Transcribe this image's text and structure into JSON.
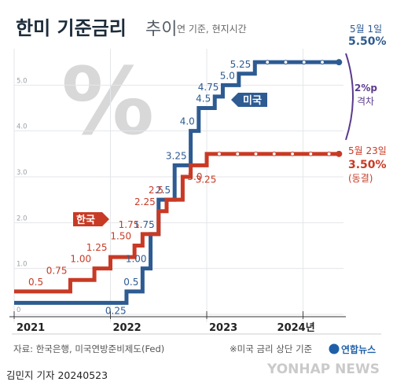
{
  "header": {
    "title": "한미 기준금리",
    "title_suffix": "추이",
    "subtitle": "연 기준, 현지시간"
  },
  "watermark_symbol": "%",
  "chart_data": {
    "type": "line",
    "step": true,
    "ylim": [
      0,
      6
    ],
    "y_ticks": [
      "0",
      "1.0",
      "2.0",
      "3.0",
      "4.0",
      "5.0"
    ],
    "x_ticks": [
      "2021",
      "2022",
      "2023",
      "2024년"
    ],
    "grid": true,
    "series": [
      {
        "name": "미국",
        "color": "#2d5b92",
        "points": [
          {
            "date": "2021-01",
            "value": 0.25
          },
          {
            "date": "2022-03",
            "value": 0.5
          },
          {
            "date": "2022-05",
            "value": 1.0
          },
          {
            "date": "2022-06",
            "value": 1.75
          },
          {
            "date": "2022-07",
            "value": 2.5
          },
          {
            "date": "2022-09",
            "value": 3.25
          },
          {
            "date": "2022-11",
            "value": 4.0
          },
          {
            "date": "2022-12",
            "value": 4.5
          },
          {
            "date": "2023-02",
            "value": 4.75
          },
          {
            "date": "2023-03",
            "value": 5.0
          },
          {
            "date": "2023-05",
            "value": 5.25
          },
          {
            "date": "2023-07",
            "value": 5.5
          },
          {
            "date": "2024-05",
            "value": 5.5
          }
        ],
        "labels": [
          "0.25",
          "0.5",
          "1.00",
          "1.75",
          "2.5",
          "3.25",
          "4.0",
          "4.5",
          "4.75",
          "5.0",
          "5.25"
        ],
        "label_values": [
          0.25,
          0.5,
          1.0,
          1.75,
          2.5,
          3.25,
          4.0,
          4.5,
          4.75,
          5.0,
          5.25
        ],
        "label_dates": [
          "2022-03",
          "2022-05",
          "2022-06",
          "2022-07",
          "2022-09",
          "2022-11",
          "2022-12",
          "2023-02",
          "2023-03",
          "2023-05",
          "2023-07"
        ]
      },
      {
        "name": "한국",
        "color": "#c83a25",
        "points": [
          {
            "date": "2021-01",
            "value": 0.5
          },
          {
            "date": "2021-08",
            "value": 0.75
          },
          {
            "date": "2021-11",
            "value": 1.0
          },
          {
            "date": "2022-01",
            "value": 1.25
          },
          {
            "date": "2022-04",
            "value": 1.5
          },
          {
            "date": "2022-05",
            "value": 1.75
          },
          {
            "date": "2022-07",
            "value": 2.25
          },
          {
            "date": "2022-08",
            "value": 2.5
          },
          {
            "date": "2022-10",
            "value": 3.0
          },
          {
            "date": "2022-11",
            "value": 3.25
          },
          {
            "date": "2023-01",
            "value": 3.5
          },
          {
            "date": "2024-05",
            "value": 3.5
          }
        ],
        "labels": [
          "0.5",
          "0.75",
          "1.00",
          "1.25",
          "1.50",
          "1.75",
          "2.25",
          "2.5",
          "3.0",
          "3.25"
        ],
        "label_values": [
          0.5,
          0.75,
          1.0,
          1.25,
          1.5,
          1.75,
          2.25,
          2.5,
          3.0,
          3.25
        ],
        "label_dates": [
          "2021-01",
          "2021-08",
          "2021-11",
          "2022-01",
          "2022-04",
          "2022-05",
          "2022-07",
          "2022-08",
          "2022-10",
          "2022-11"
        ]
      }
    ],
    "annotations": {
      "us_end_date": "5월 1일",
      "us_end_value": "5.50%",
      "kr_end_date": "5월 23일",
      "kr_end_value": "3.50%",
      "kr_end_note": "(동결)",
      "gap_value": "2%p",
      "gap_label": "격차"
    }
  },
  "footer": {
    "source": "자료: 한국은행, 미국연방준비제도(Fed)",
    "note": "※미국 금리 상단 기준",
    "logo_text": "연합뉴스",
    "byline": "김민지 기자  20240523",
    "watermark": "YONHAP NEWS"
  },
  "colors": {
    "us": "#2d5b92",
    "kr": "#c83a25",
    "gap": "#5a3b8c",
    "title": "#1c2b3a"
  }
}
